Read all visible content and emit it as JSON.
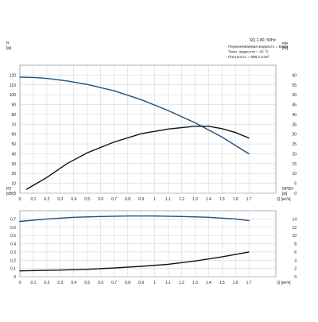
{
  "chart_data": [
    {
      "type": "line",
      "x": {
        "label": "Q [м³/ч]",
        "lim": [
          0,
          1.9
        ],
        "ticks": [
          0.1,
          0.2,
          0.3,
          0.4,
          0.5,
          0.6,
          0.7,
          0.8,
          0.9,
          1.0,
          1.1,
          1.2,
          1.3,
          1.4,
          1.5,
          1.6,
          1.7
        ]
      },
      "y_left": {
        "label_top": "H",
        "label_unit": "[м]",
        "lim": [
          0,
          130
        ],
        "ticks": [
          0,
          10,
          20,
          30,
          40,
          50,
          60,
          70,
          80,
          90,
          100,
          110,
          120
        ]
      },
      "y_right": {
        "label_top": "eta",
        "label_unit": "[%]",
        "lim": [
          0,
          65
        ],
        "ticks": [
          0,
          5,
          10,
          15,
          20,
          25,
          30,
          35,
          40,
          45,
          50,
          55,
          60
        ]
      },
      "legend": {
        "title": "SQ 1-80, 50Hz",
        "lines": [
          "Перекачиваемая жидкость = Вода",
          "Темп. жидкости = 20 °C",
          "Плотность = 998.2 кг/м³"
        ]
      },
      "grid": true,
      "series": [
        {
          "axis": "left",
          "color": "#1f4f82",
          "points": [
            [
              0.0,
              118
            ],
            [
              0.1,
              117.6
            ],
            [
              0.2,
              116.6
            ],
            [
              0.35,
              114
            ],
            [
              0.5,
              110.5
            ],
            [
              0.7,
              104
            ],
            [
              0.9,
              95
            ],
            [
              1.1,
              84
            ],
            [
              1.3,
              71.5
            ],
            [
              1.5,
              57
            ],
            [
              1.7,
              40
            ]
          ]
        },
        {
          "axis": "right",
          "color": "#111111",
          "points": [
            [
              0.05,
              2
            ],
            [
              0.1,
              4
            ],
            [
              0.2,
              8
            ],
            [
              0.35,
              15
            ],
            [
              0.5,
              20.5
            ],
            [
              0.7,
              26
            ],
            [
              0.9,
              30.2
            ],
            [
              1.1,
              32.6
            ],
            [
              1.3,
              34
            ],
            [
              1.4,
              34
            ],
            [
              1.5,
              32.8
            ],
            [
              1.6,
              30.8
            ],
            [
              1.7,
              28
            ]
          ]
        }
      ]
    },
    {
      "type": "line",
      "x": {
        "label": "Q [м³/ч]",
        "lim": [
          0,
          1.9
        ],
        "ticks": [
          0.1,
          0.2,
          0.3,
          0.4,
          0.5,
          0.6,
          0.7,
          0.8,
          0.9,
          1.0,
          1.1,
          1.2,
          1.3,
          1.4,
          1.5,
          1.6,
          1.7
        ]
      },
      "y_left": {
        "label_top": "P2",
        "label_unit": "[кВт]",
        "lim": [
          0,
          0.8
        ],
        "ticks": [
          0,
          0.1,
          0.2,
          0.3,
          0.4,
          0.5,
          0.6,
          0.7
        ]
      },
      "y_right": {
        "label_top": "NPSH",
        "label_unit": "[м]",
        "lim": [
          0,
          16
        ],
        "ticks": [
          0,
          2,
          4,
          6,
          8,
          10,
          12,
          14
        ]
      },
      "grid": true,
      "series": [
        {
          "axis": "left",
          "color": "#1f4f82",
          "points": [
            [
              0.0,
              0.67
            ],
            [
              0.2,
              0.7
            ],
            [
              0.4,
              0.72
            ],
            [
              0.6,
              0.73
            ],
            [
              0.8,
              0.735
            ],
            [
              1.0,
              0.735
            ],
            [
              1.2,
              0.73
            ],
            [
              1.4,
              0.72
            ],
            [
              1.6,
              0.7
            ],
            [
              1.7,
              0.68
            ]
          ]
        },
        {
          "axis": "right",
          "color": "#111111",
          "points": [
            [
              0.0,
              1.4
            ],
            [
              0.3,
              1.6
            ],
            [
              0.5,
              1.8
            ],
            [
              0.7,
              2.1
            ],
            [
              0.9,
              2.5
            ],
            [
              1.1,
              3.0
            ],
            [
              1.3,
              3.8
            ],
            [
              1.5,
              4.8
            ],
            [
              1.7,
              6.0
            ]
          ]
        }
      ]
    }
  ]
}
